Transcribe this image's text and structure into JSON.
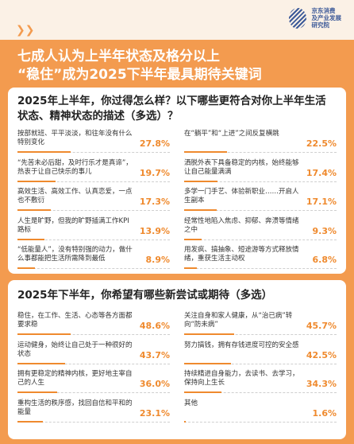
{
  "header": {
    "logo_lines": [
      "京东消费",
      "及产业发展",
      "研究院"
    ],
    "title_lines": [
      "七成人认为上半年状态及格分以上",
      "“稳住”成为2025下半年最具期待关键词"
    ]
  },
  "chart_data": [
    {
      "type": "bar",
      "title": "2025年上半年，你过得怎么样？以下哪些更符合对你上半年生活状态、精神状态的描述（多选）？",
      "color": "#ef8a2e",
      "categories": [
        "按部就班、平平淡淡，和往年没有什么特别变化",
        "在“躺平”和“上进”之间反复横跳",
        "“先苦未必后甜，及时行乐才是真谛”，热衷于让自己快乐的事儿",
        "洒脱外表下具备稳定的内核，始终能够让自己能量满满",
        "高效生活、高效工作、认真恋爱，一点也不敷衍",
        "多学一门手艺、体验新职业……开启人生副本",
        "人生是旷野，但我的旷野插满工作KPI路标",
        "经常性地陷入焦虑、抑郁、奔溃等情绪之中",
        "“低能量人”，没有特别强的动力，做什么事都能把生活所需降到最低",
        "用发疯、搞抽象、短途游等方式释放情绪，重获生活主动权"
      ],
      "values": [
        27.8,
        22.5,
        19.7,
        17.4,
        17.3,
        17.1,
        13.9,
        9.3,
        8.9,
        6.8
      ],
      "value_labels": [
        "27.8%",
        "22.5%",
        "19.7%",
        "17.4%",
        "17.3%",
        "17.1%",
        "13.9%",
        "9.3%",
        "8.9%",
        "6.8%"
      ]
    },
    {
      "type": "bar",
      "title": "2025年下半年，你希望有哪些新尝试或期待（多选）",
      "color": "#ef8a2e",
      "categories": [
        "稳住，在工作、生活、心态等各方面都要求稳",
        "关注自身和家人健康，从“治已病”转向“防未病”",
        "运动健身，始终让自己处于一种很好的状态",
        "努力搞钱，拥有存钱进度可控的安全感",
        "拥有更稳定的精神内核，更好地主宰自己的人生",
        "持续精进自身能力，去读书、去学习，保持向上生长",
        "重构生活的秩序感，找回自信和平和的能量",
        "其他"
      ],
      "values": [
        48.6,
        45.7,
        43.7,
        42.5,
        36.0,
        34.3,
        23.1,
        1.6
      ],
      "value_labels": [
        "48.6%",
        "45.7%",
        "43.7%",
        "42.5%",
        "36.0%",
        "34.3%",
        "23.1%",
        "1.6%"
      ]
    }
  ]
}
